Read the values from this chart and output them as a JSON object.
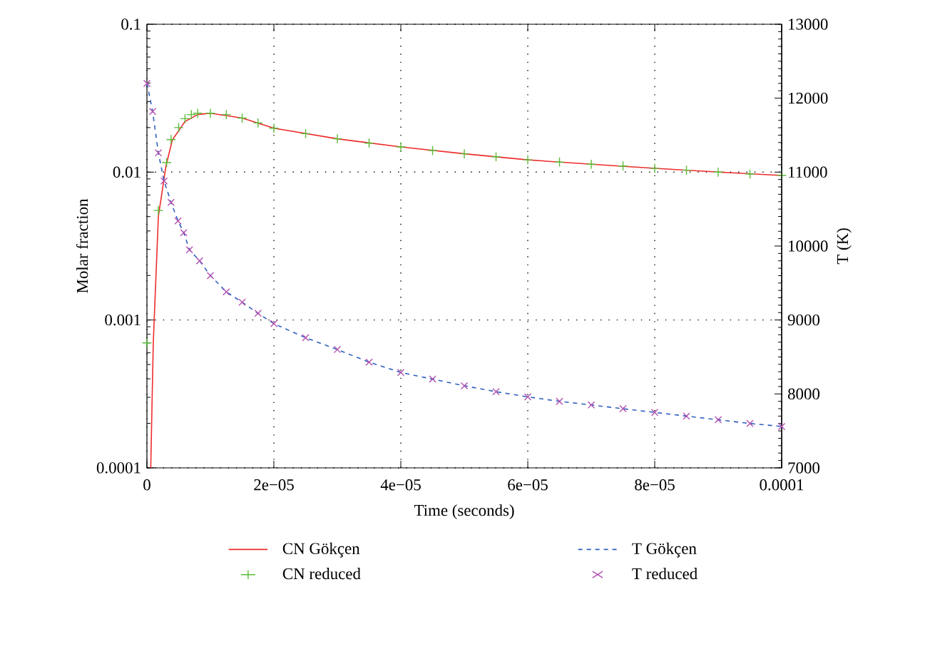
{
  "chart_data": {
    "type": "line",
    "xlabel": "Time (seconds)",
    "ylabel": "Molar fraction",
    "y2label": "T (K)",
    "xlim": [
      0,
      0.0001
    ],
    "xticks": [
      0,
      {
        "value": 2e-05,
        "label": "2e−05"
      },
      {
        "value": 4e-05,
        "label": "4e−05"
      },
      {
        "value": 6e-05,
        "label": "6e−05"
      },
      {
        "value": 8e-05,
        "label": "8e−05"
      },
      0.0001
    ],
    "ylim": [
      0.0001,
      0.1
    ],
    "yticks": [
      0.0001,
      0.001,
      0.01,
      0.1
    ],
    "log": "y",
    "y2lim": [
      7000,
      13000
    ],
    "y2ticks": [
      7000,
      8000,
      9000,
      10000,
      11000,
      12000,
      13000
    ],
    "grid": true,
    "legend": "bottom",
    "series": [
      {
        "name": "CN Gökçen",
        "line_style": "solid",
        "color": "#ee2c2c",
        "x": [
          6e-07,
          1e-06,
          1.8e-06,
          3e-06,
          4e-06,
          6e-06,
          8e-06,
          1e-05,
          1.5e-05,
          2e-05,
          3e-05,
          4e-05,
          5e-05,
          6e-05,
          7e-05,
          8e-05,
          9e-05,
          0.0001
        ],
        "values": [
          0.0001,
          0.0007,
          0.005,
          0.011,
          0.0165,
          0.022,
          0.0245,
          0.025,
          0.0232,
          0.0198,
          0.0168,
          0.0148,
          0.0133,
          0.0121,
          0.0113,
          0.0106,
          0.01,
          0.0095
        ]
      },
      {
        "name": "CN reduced",
        "type": "scatter",
        "marker": "plus",
        "color": "#5dbb3a",
        "x": [
          0,
          1.8e-06,
          3.1e-06,
          3.8e-06,
          5e-06,
          6e-06,
          7e-06,
          8e-06,
          1e-05,
          1.25e-05,
          1.5e-05,
          1.75e-05,
          2e-05,
          2.5e-05,
          3e-05,
          3.5e-05,
          4e-05,
          4.5e-05,
          5e-05,
          5.5e-05,
          6e-05,
          6.5e-05,
          7e-05,
          7.5e-05,
          8e-05,
          8.5e-05,
          9e-05,
          9.5e-05,
          0.0001
        ],
        "values": [
          0.0007,
          0.0055,
          0.0116,
          0.0166,
          0.02,
          0.023,
          0.0245,
          0.025,
          0.025,
          0.0245,
          0.0232,
          0.0215,
          0.0198,
          0.0182,
          0.0168,
          0.0157,
          0.0148,
          0.014,
          0.0133,
          0.0127,
          0.0121,
          0.0117,
          0.0113,
          0.011,
          0.0106,
          0.0103,
          0.01,
          0.0097,
          0.0095
        ]
      },
      {
        "name": "T Gökçen",
        "line_style": "dashed",
        "axis": "y2",
        "color": "#2c5fc0",
        "x": [
          0,
          9e-07,
          1.8e-06,
          2.7e-06,
          3.8e-06,
          4.9e-06,
          5.8e-06,
          6.7e-06,
          8.3e-06,
          1e-05,
          1.25e-05,
          1.5e-05,
          1.75e-05,
          2e-05,
          2.5e-05,
          3e-05,
          3.5e-05,
          4e-05,
          4.5e-05,
          5e-05,
          5.5e-05,
          6e-05,
          6.5e-05,
          7e-05,
          7.5e-05,
          8e-05,
          8.5e-05,
          9e-05,
          9.5e-05,
          0.0001
        ],
        "values": [
          12200,
          11820,
          11260,
          10880,
          10590,
          10340,
          10180,
          9950,
          9800,
          9600,
          9380,
          9240,
          9090,
          8950,
          8760,
          8600,
          8430,
          8290,
          8200,
          8110,
          8030,
          7960,
          7900,
          7850,
          7800,
          7750,
          7700,
          7650,
          7600,
          7560
        ]
      },
      {
        "name": "T reduced",
        "type": "scatter",
        "marker": "cross",
        "axis": "y2",
        "color": "#b04fb0",
        "x": [
          0,
          9e-07,
          1.8e-06,
          2.7e-06,
          3.8e-06,
          4.9e-06,
          5.8e-06,
          6.7e-06,
          8.3e-06,
          1e-05,
          1.25e-05,
          1.5e-05,
          1.75e-05,
          2e-05,
          2.5e-05,
          3e-05,
          3.5e-05,
          4e-05,
          4.5e-05,
          5e-05,
          5.5e-05,
          6e-05,
          6.5e-05,
          7e-05,
          7.5e-05,
          8e-05,
          8.5e-05,
          9e-05,
          9.5e-05,
          0.0001
        ],
        "values": [
          12200,
          11820,
          11260,
          10880,
          10590,
          10340,
          10180,
          9950,
          9800,
          9600,
          9380,
          9240,
          9090,
          8950,
          8760,
          8600,
          8430,
          8290,
          8200,
          8110,
          8030,
          7960,
          7900,
          7850,
          7800,
          7750,
          7700,
          7650,
          7600,
          7560
        ]
      }
    ]
  }
}
